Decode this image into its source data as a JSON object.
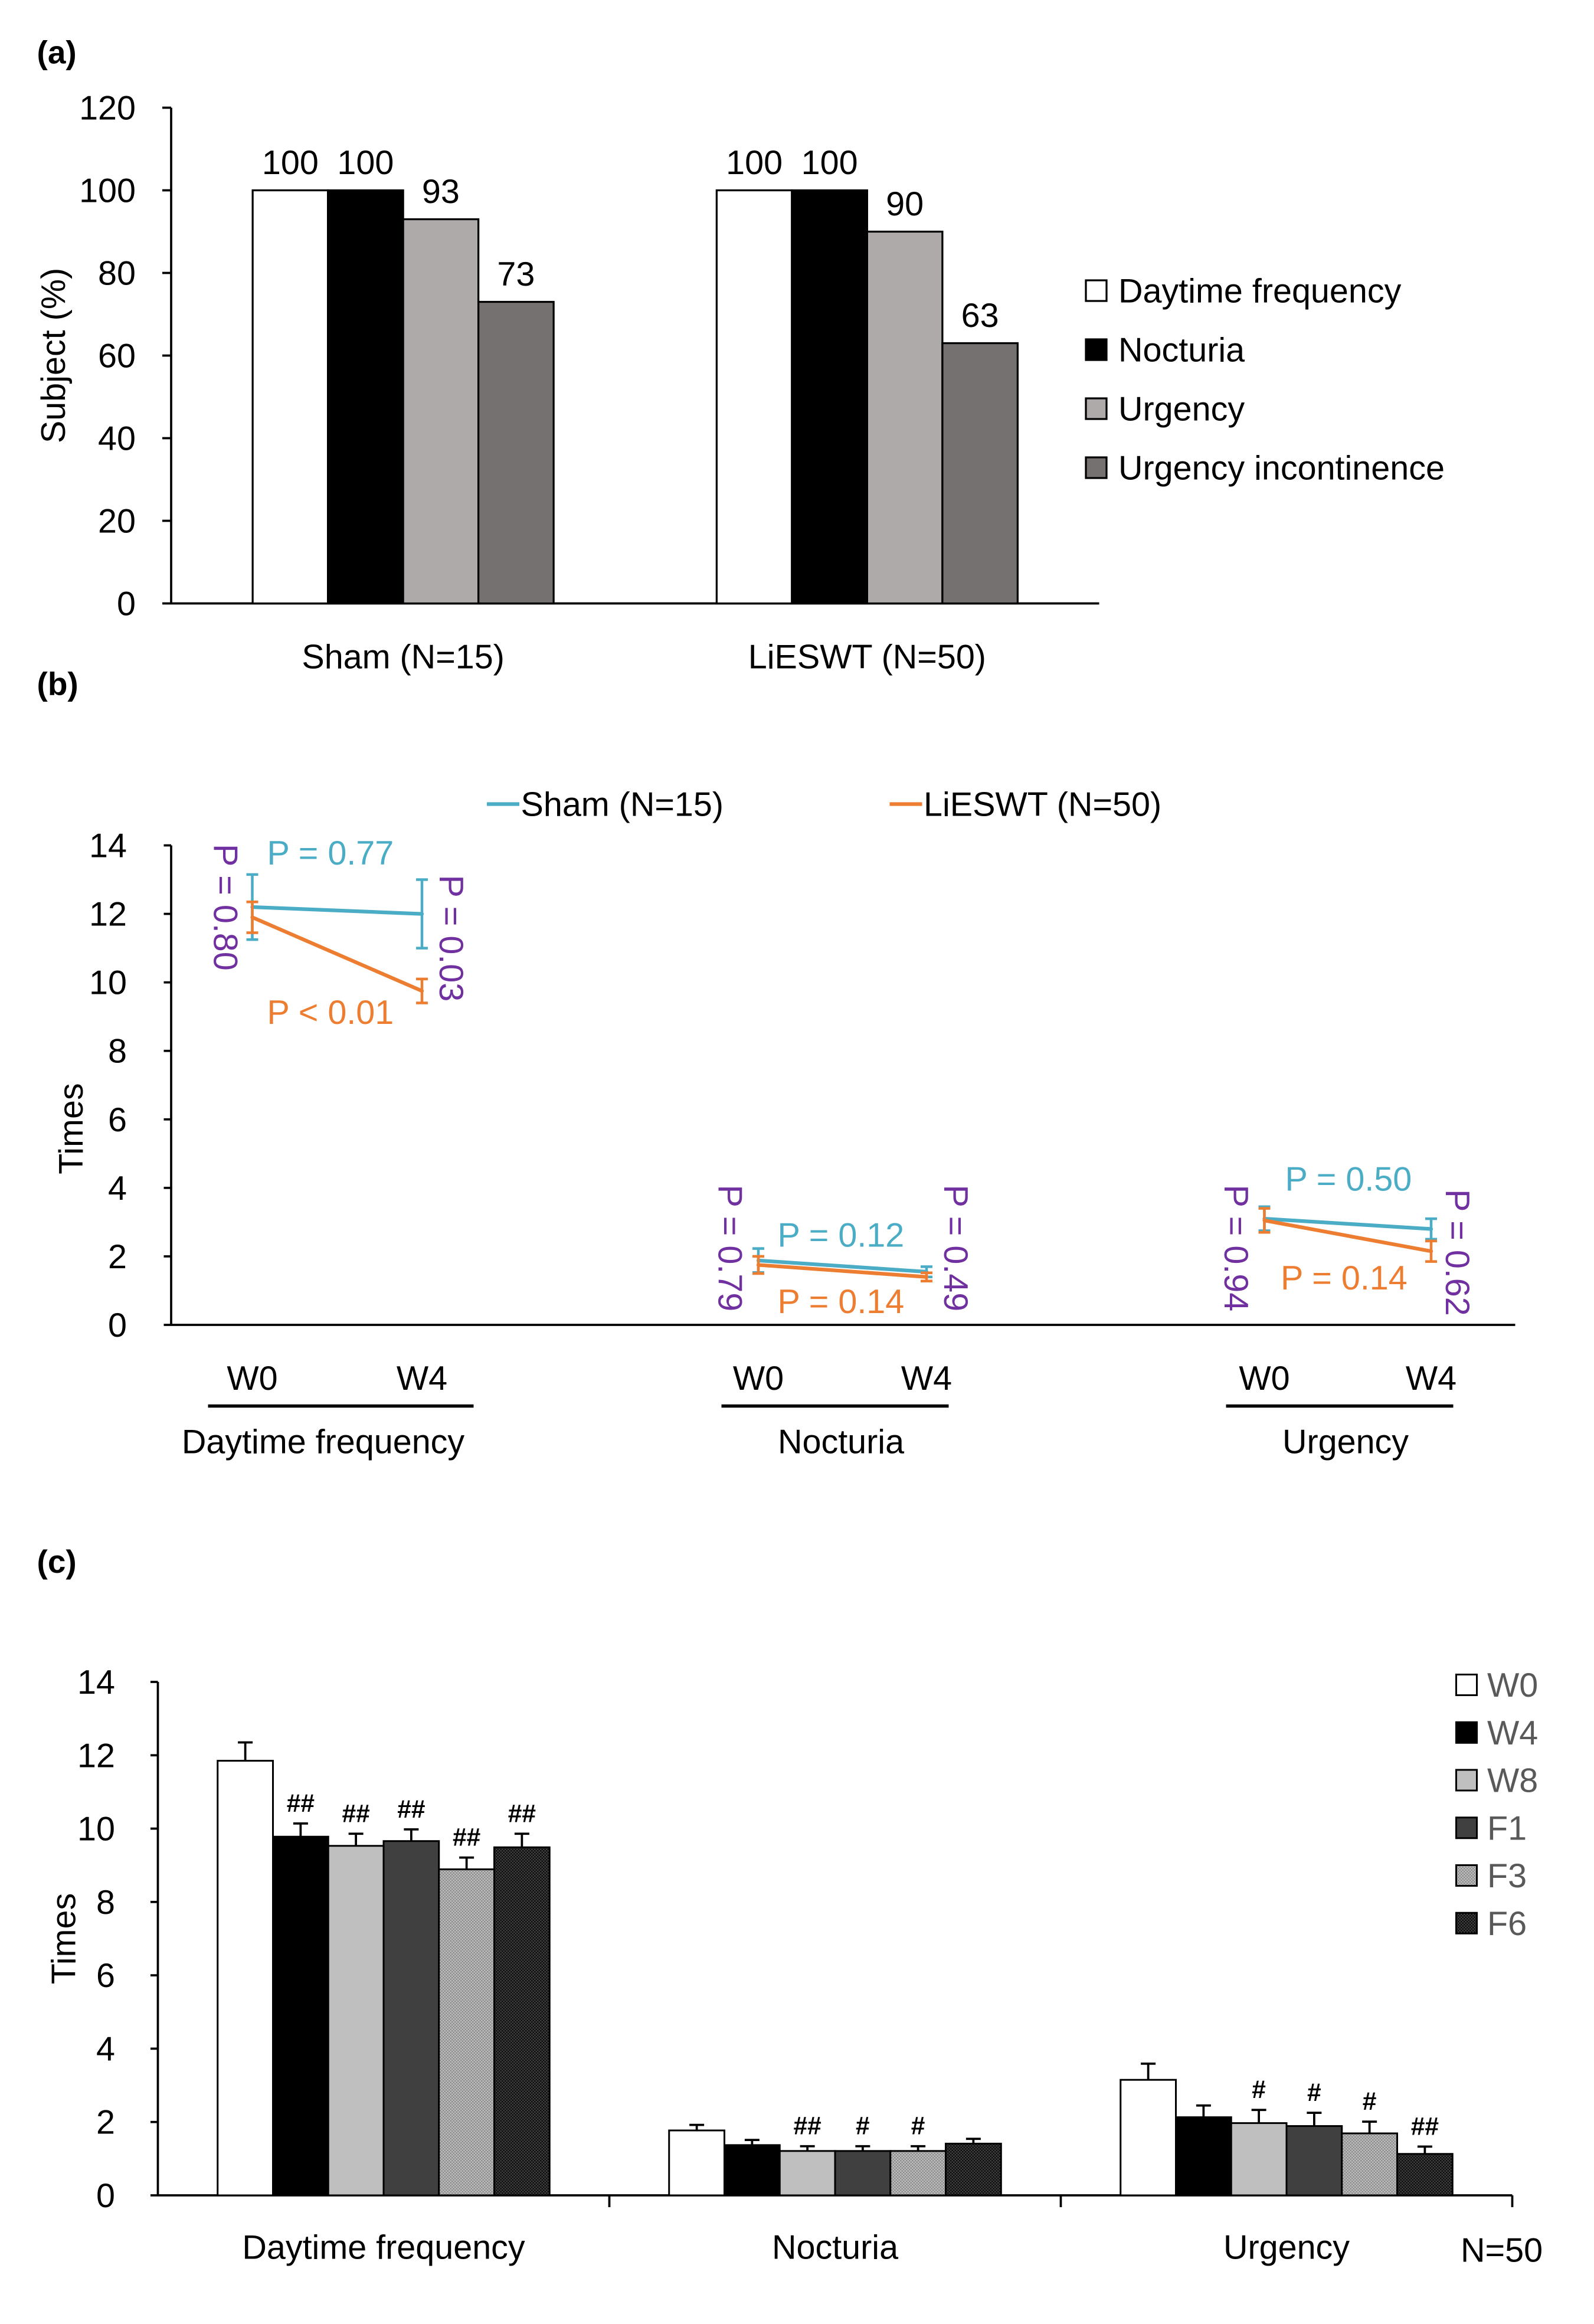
{
  "panel_labels": [
    "(a)",
    "(b)",
    "(c)"
  ],
  "chart_data": [
    {
      "type": "bar",
      "categories": [
        "Sham (N=15)",
        "LiESWT (N=50)"
      ],
      "series": [
        {
          "name": "Daytime frequency",
          "color": "#ffffff",
          "values": [
            100,
            100
          ]
        },
        {
          "name": "Nocturia",
          "color": "#000000",
          "values": [
            100,
            100
          ]
        },
        {
          "name": "Urgency",
          "color": "#aeaaaa",
          "values": [
            93,
            90
          ]
        },
        {
          "name": "Urgency incontinence",
          "color": "#767171",
          "values": [
            73,
            63
          ]
        }
      ],
      "ylabel": "Subject (%)",
      "ylim": [
        0,
        120
      ],
      "yticks": [
        0,
        20,
        40,
        60,
        80,
        100,
        120
      ],
      "grid": false,
      "data_labels": true,
      "legend": "right"
    },
    {
      "type": "line",
      "series": [
        {
          "name": "Sham (N=15)",
          "color": "#4bacc6"
        },
        {
          "name": "LiESWT (N=50)",
          "color": "#ed7d31"
        }
      ],
      "groups": [
        {
          "name": "Daytime frequency",
          "x": [
            "W0",
            "W4"
          ],
          "values": [
            [
              12.2,
              12.0
            ],
            [
              11.9,
              9.75
            ]
          ],
          "error": [
            [
              0.95,
              1.0
            ],
            [
              0.45,
              0.35
            ]
          ],
          "p_within": [
            "P = 0.77",
            "P < 0.01"
          ],
          "p_between": [
            "P = 0.80",
            "P = 0.03"
          ]
        },
        {
          "name": "Nocturia",
          "x": [
            "W0",
            "W4"
          ],
          "values": [
            [
              1.88,
              1.55
            ],
            [
              1.75,
              1.4
            ]
          ],
          "error": [
            [
              0.35,
              0.15
            ],
            [
              0.25,
              0.12
            ]
          ],
          "p_within": [
            "P = 0.12",
            "P = 0.14"
          ],
          "p_between": [
            "P = 0.79",
            "P = 0.49"
          ]
        },
        {
          "name": "Urgency",
          "x": [
            "W0",
            "W4"
          ],
          "values": [
            [
              3.1,
              2.8
            ],
            [
              3.05,
              2.15
            ]
          ],
          "error": [
            [
              0.35,
              0.3
            ],
            [
              0.35,
              0.3
            ]
          ],
          "p_within": [
            "P = 0.50",
            "P = 0.14"
          ],
          "p_between": [
            "P = 0.94",
            "P = 0.62"
          ]
        }
      ],
      "p_between_color": "#7030a0",
      "ylabel": "Times",
      "ylim": [
        0,
        14
      ],
      "yticks": [
        0,
        2,
        4,
        6,
        8,
        10,
        12,
        14
      ],
      "grid": false,
      "legend": "top"
    },
    {
      "type": "bar",
      "categories": [
        "Daytime frequency",
        "Nocturia",
        "Urgency"
      ],
      "series": [
        {
          "name": "W0",
          "color": "#ffffff",
          "values": [
            11.85,
            1.77,
            3.15
          ],
          "error": [
            0.5,
            0.15,
            0.44
          ],
          "significance": [
            "",
            "",
            ""
          ]
        },
        {
          "name": "W4",
          "color": "#000000",
          "values": [
            9.78,
            1.37,
            2.13
          ],
          "error": [
            0.36,
            0.14,
            0.32
          ],
          "significance": [
            "##",
            "",
            ""
          ]
        },
        {
          "name": "W8",
          "color": "#bfbfbf",
          "values": [
            9.53,
            1.21,
            1.97
          ],
          "error": [
            0.33,
            0.13,
            0.36
          ],
          "significance": [
            "##",
            "##",
            "#"
          ]
        },
        {
          "name": "F1",
          "color": "#404040",
          "values": [
            9.66,
            1.21,
            1.89
          ],
          "error": [
            0.32,
            0.13,
            0.36
          ],
          "significance": [
            "##",
            "#",
            "#"
          ]
        },
        {
          "name": "F3",
          "color": "#bfbfbf",
          "values": [
            8.89,
            1.21,
            1.69
          ],
          "error": [
            0.32,
            0.13,
            0.32
          ],
          "significance": [
            "##",
            "#",
            "#"
          ]
        },
        {
          "name": "F6",
          "color": "#404040",
          "values": [
            9.49,
            1.41,
            1.13
          ],
          "error": [
            0.37,
            0.13,
            0.2
          ],
          "significance": [
            "##",
            "",
            "##"
          ]
        }
      ],
      "ylabel": "Times",
      "ylim": [
        0,
        14
      ],
      "yticks": [
        0,
        2,
        4,
        6,
        8,
        10,
        12,
        14
      ],
      "grid": false,
      "legend": "top-right",
      "note": "N=50"
    }
  ]
}
